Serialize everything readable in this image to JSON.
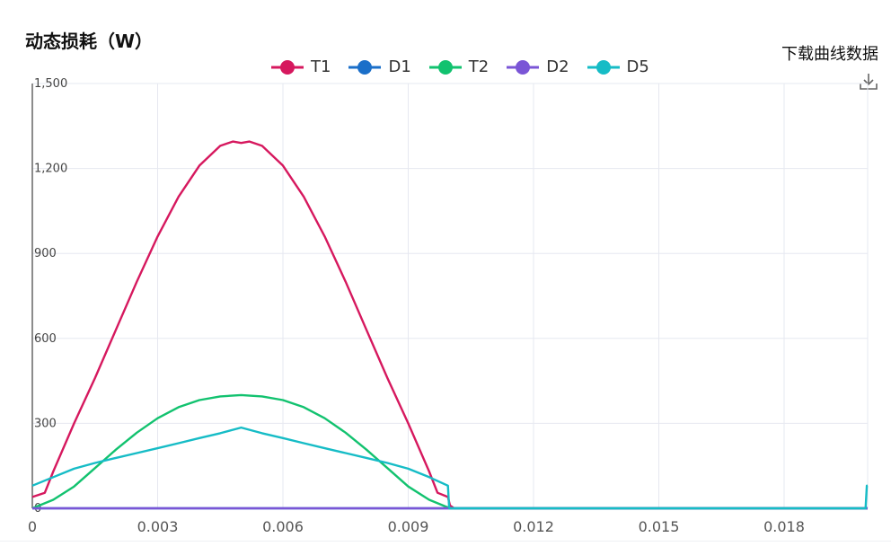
{
  "chart_data": {
    "type": "line",
    "title": "动态损耗（W）",
    "xlabel": "",
    "ylabel": "",
    "xlim": [
      0,
      0.02
    ],
    "ylim": [
      0,
      1500
    ],
    "x_ticks": [
      "0",
      "0.003",
      "0.006",
      "0.009",
      "0.012",
      "0.015",
      "0.018"
    ],
    "y_ticks": [
      "0",
      "300",
      "600",
      "900",
      "1,200",
      "1,500"
    ],
    "x_tick_values": [
      0,
      0.003,
      0.006,
      0.009,
      0.012,
      0.015,
      0.018
    ],
    "y_tick_values": [
      0,
      300,
      600,
      900,
      1200,
      1500
    ],
    "grid": true,
    "legend_position": "top",
    "series": [
      {
        "name": "T1",
        "color": "#d6185e",
        "x": [
          0,
          0.0003,
          0.0005,
          0.001,
          0.0015,
          0.002,
          0.0025,
          0.003,
          0.0035,
          0.004,
          0.0045,
          0.0048,
          0.005,
          0.0052,
          0.0055,
          0.006,
          0.0065,
          0.007,
          0.0075,
          0.008,
          0.0085,
          0.009,
          0.0095,
          0.0097,
          0.00995,
          0.01,
          0.0101,
          0.02
        ],
        "y": [
          40,
          55,
          130,
          300,
          460,
          630,
          800,
          960,
          1100,
          1210,
          1280,
          1295,
          1290,
          1295,
          1280,
          1210,
          1100,
          960,
          800,
          630,
          460,
          300,
          130,
          55,
          40,
          10,
          0,
          0
        ]
      },
      {
        "name": "D1",
        "color": "#1b6fc9",
        "x": [
          0,
          0.02
        ],
        "y": [
          0,
          0
        ]
      },
      {
        "name": "T2",
        "color": "#12c26f",
        "x": [
          0,
          0.0005,
          0.001,
          0.0015,
          0.002,
          0.0025,
          0.003,
          0.0035,
          0.004,
          0.0045,
          0.005,
          0.0055,
          0.006,
          0.0065,
          0.007,
          0.0075,
          0.008,
          0.0085,
          0.009,
          0.0095,
          0.01,
          0.0101,
          0.02
        ],
        "y": [
          0,
          30,
          77,
          142,
          207,
          267,
          318,
          357,
          382,
          395,
          400,
          395,
          382,
          357,
          318,
          267,
          207,
          142,
          77,
          30,
          0,
          0,
          0
        ]
      },
      {
        "name": "D2",
        "color": "#7a55d6",
        "x": [
          0,
          0.02
        ],
        "y": [
          0,
          0
        ]
      },
      {
        "name": "D5",
        "color": "#16bcc6",
        "x": [
          0,
          0.0005,
          0.001,
          0.0015,
          0.002,
          0.0025,
          0.003,
          0.0035,
          0.004,
          0.0045,
          0.005,
          0.0055,
          0.006,
          0.0065,
          0.007,
          0.0075,
          0.008,
          0.0085,
          0.009,
          0.0095,
          0.00995,
          0.00998,
          0.0101,
          0.01995,
          0.01998,
          0.02
        ],
        "y": [
          80,
          110,
          140,
          160,
          178,
          195,
          212,
          230,
          248,
          265,
          285,
          265,
          248,
          230,
          212,
          195,
          178,
          160,
          140,
          110,
          80,
          0,
          0,
          0,
          80,
          80
        ]
      }
    ]
  },
  "download": {
    "label": "下载曲线数据",
    "icon": "download-icon"
  }
}
